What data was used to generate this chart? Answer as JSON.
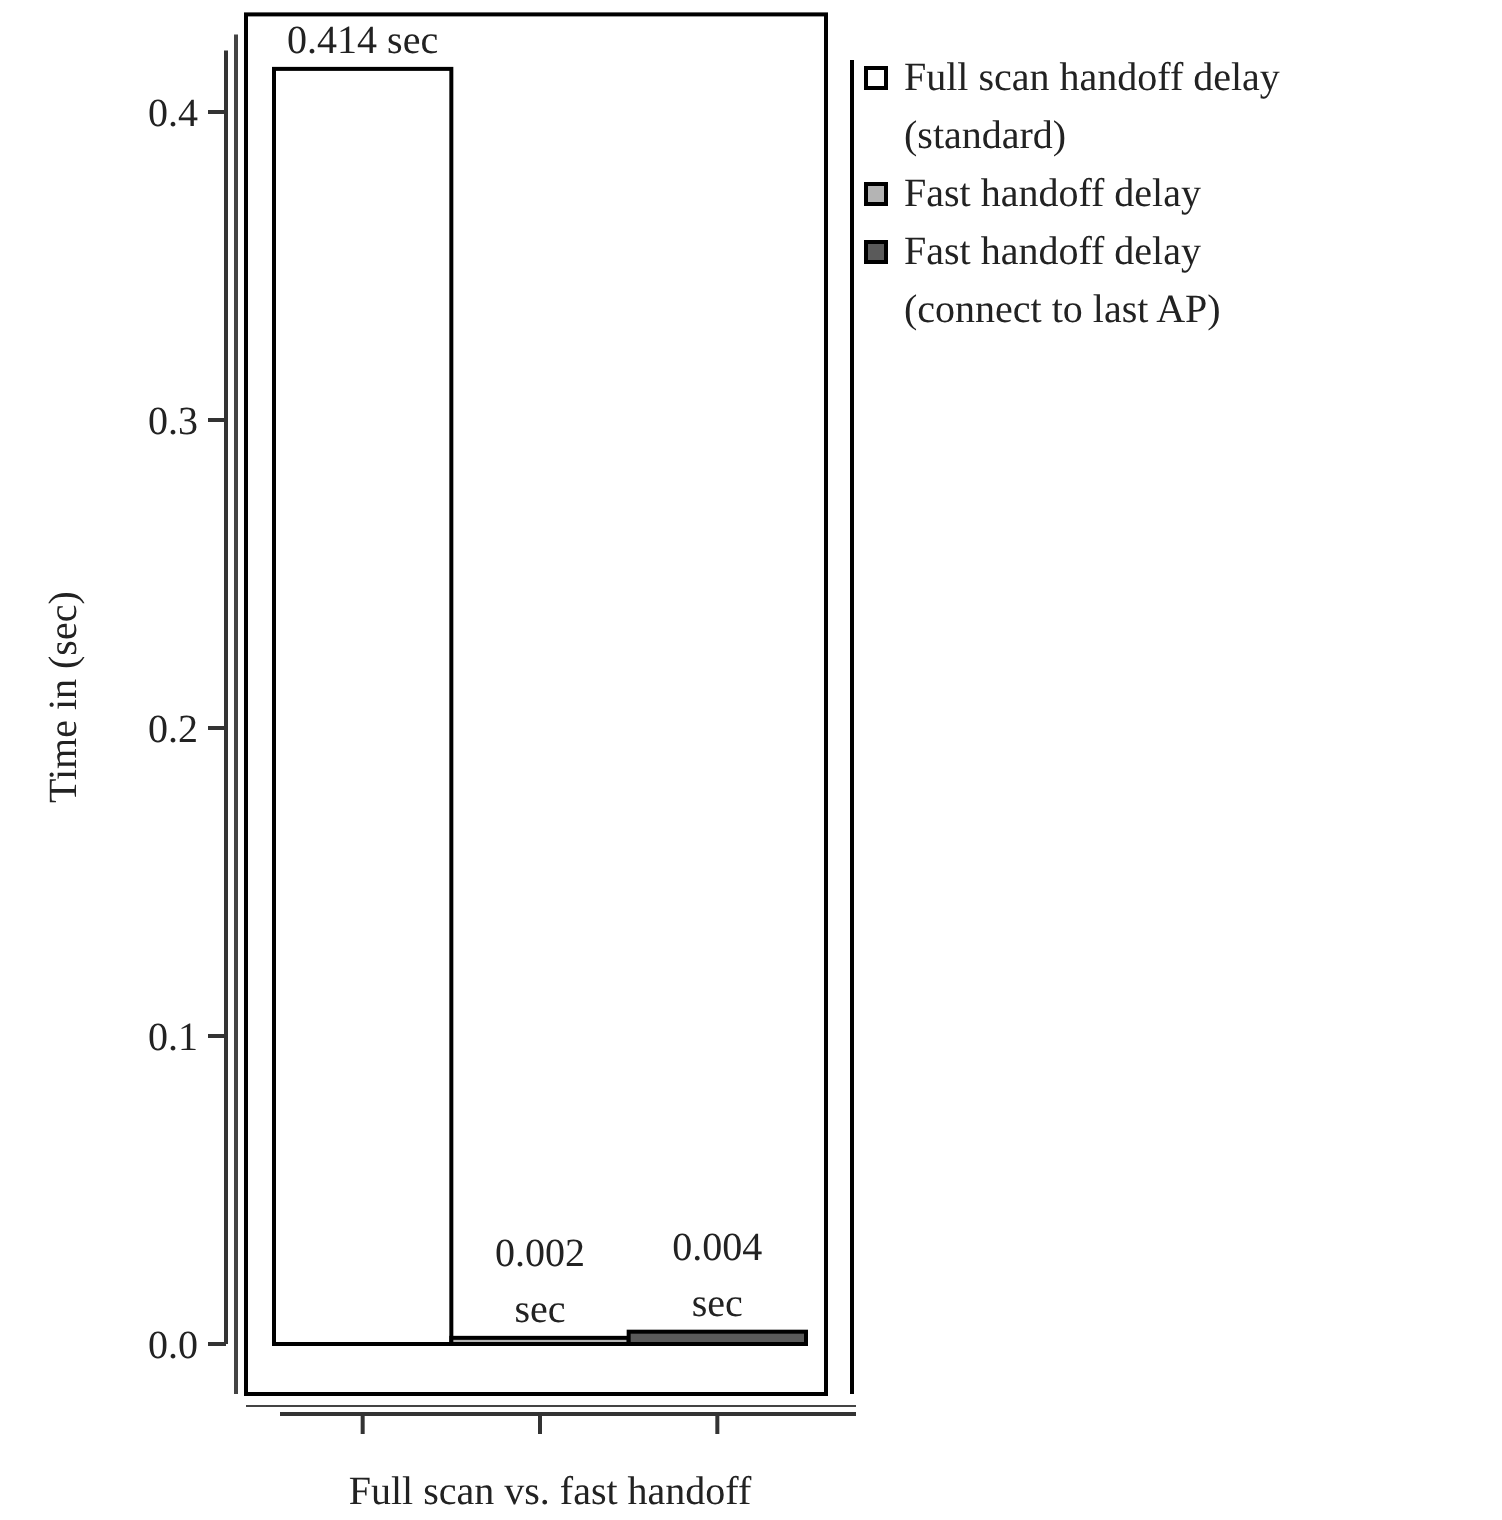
{
  "chart_data": {
    "type": "bar",
    "xlabel": "Full scan vs. fast handoff",
    "ylabel": "Time in (sec)",
    "categories": [
      null
    ],
    "series": [
      {
        "name": "Full scan handoff delay\n(standard)",
        "color": "#ffffff",
        "values": [
          0.414
        ],
        "value_labels": [
          "0.414 sec"
        ]
      },
      {
        "name": "Fast handoff delay",
        "color": "#b4b4b4",
        "values": [
          0.002
        ],
        "value_labels": [
          "0.002\nsec"
        ]
      },
      {
        "name": "Fast handoff delay\n(connect to last AP)",
        "color": "#5a5a5a",
        "values": [
          0.004
        ],
        "value_labels": [
          "0.004\nsec"
        ]
      }
    ],
    "ylim": [
      0,
      0.42
    ],
    "yticks": [
      {
        "value": 0,
        "label": "0.0"
      },
      {
        "value": 0.1,
        "label": "0.1"
      },
      {
        "value": 0.2,
        "label": "0.2"
      },
      {
        "value": 0.3,
        "label": "0.3"
      },
      {
        "value": 0.4,
        "label": "0.4"
      }
    ],
    "legend": "top right",
    "grid": false
  }
}
